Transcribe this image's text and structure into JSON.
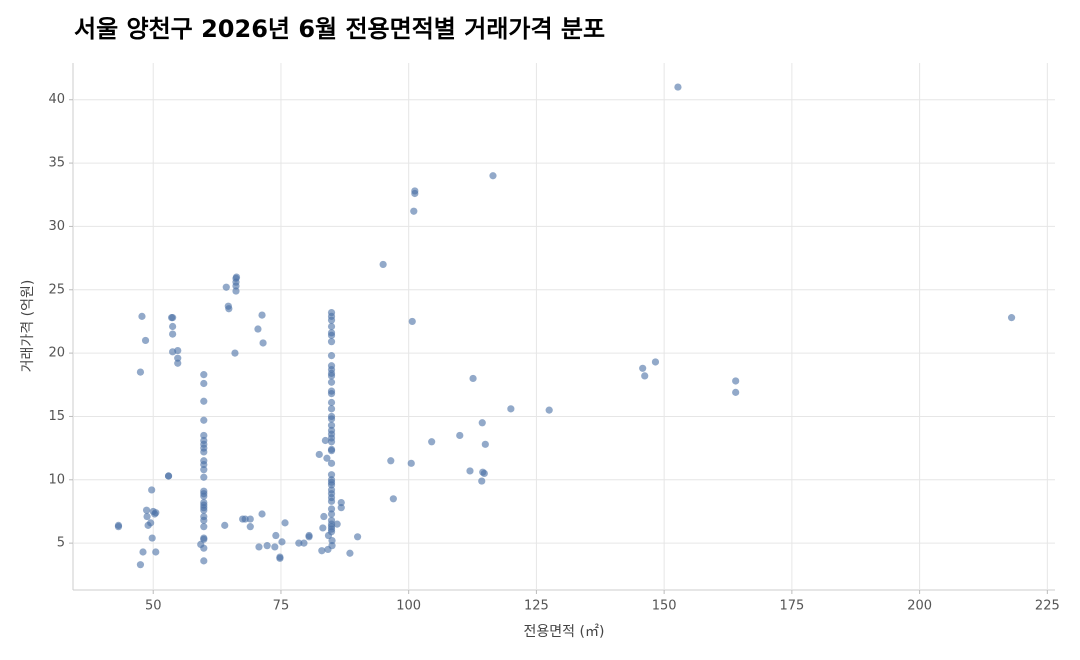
{
  "chart_data": {
    "type": "scatter",
    "title": "서울 양천구 2026년 6월 전용면적별 거래가격 분포",
    "x_label": "전용면적 (㎡)",
    "y_label": "거래가격 (억원)",
    "color": "#4a6fa5",
    "grid": true,
    "xlim": [
      34.3,
      226.5
    ],
    "ylim": [
      1.3,
      42.9
    ],
    "xticks": [
      50,
      75,
      100,
      125,
      150,
      175,
      200,
      225
    ],
    "yticks": [
      5,
      10,
      15,
      20,
      25,
      30,
      35,
      40
    ],
    "x": [
      43.2,
      43.2,
      47.5,
      47.5,
      47.8,
      48,
      48.5,
      48.7,
      48.8,
      49,
      49.5,
      49.7,
      49.8,
      50,
      50.3,
      50.5,
      50.5,
      53,
      53,
      53.6,
      53.8,
      53.8,
      53.8,
      53.8,
      54.8,
      54.8,
      54.8,
      59.9,
      59.9,
      59.9,
      59.9,
      59.9,
      59.9,
      59.9,
      59.9,
      59.9,
      59.9,
      59.9,
      59.9,
      59.9,
      59.9,
      59.9,
      59.9,
      59.9,
      59.9,
      59.9,
      59.9,
      59.9,
      59.9,
      59.9,
      59.9,
      59.9,
      59.9,
      59.9,
      59.3,
      64,
      64.3,
      64.7,
      64.8,
      66,
      66.2,
      66.3,
      66.2,
      66.2,
      66.2,
      67.5,
      68,
      69,
      69,
      70.5,
      70.7,
      71.3,
      71.5,
      71.3,
      72.3,
      73.8,
      74,
      74.8,
      74.8,
      75.2,
      75.8,
      78.5,
      79.5,
      80.5,
      80.5,
      82.5,
      83,
      83.2,
      83.4,
      83.7,
      84,
      84.2,
      84.3,
      85,
      85,
      86,
      86.8,
      86.8,
      88.5,
      90,
      84.9,
      84.9,
      84.9,
      84.9,
      84.9,
      84.9,
      84.9,
      84.9,
      84.9,
      84.9,
      84.9,
      84.9,
      84.9,
      84.9,
      84.9,
      84.9,
      84.9,
      84.9,
      84.9,
      84.9,
      84.9,
      84.9,
      84.9,
      84.9,
      84.9,
      84.9,
      84.9,
      84.9,
      84.9,
      84.9,
      84.9,
      84.9,
      84.9,
      84.9,
      84.9,
      84.9,
      84.9,
      84.9,
      84.9,
      84.9,
      84.9,
      84.9,
      95,
      96.5,
      97,
      100.5,
      100.7,
      101,
      101.2,
      101.2,
      104.5,
      110,
      112,
      112.6,
      114.3,
      114.4,
      114.5,
      114.8,
      115,
      116.5,
      120,
      127.5,
      145.8,
      146.2,
      148.3,
      152.7,
      164,
      164,
      218
    ],
    "values": [
      6.4,
      6.3,
      3.3,
      18.5,
      22.9,
      4.3,
      21,
      7.6,
      7.1,
      6.4,
      6.6,
      9.2,
      5.4,
      7.5,
      7.3,
      7.4,
      4.3,
      10.3,
      10.3,
      22.8,
      22.8,
      22.1,
      21.5,
      20.1,
      20.2,
      19.6,
      19.2,
      18.3,
      17.6,
      16.2,
      14.7,
      13.5,
      13.1,
      12.8,
      12.5,
      12.2,
      11.5,
      11.2,
      10.8,
      10.2,
      9.1,
      8.9,
      8.7,
      8.2,
      8.0,
      7.8,
      7.6,
      7.1,
      6.8,
      6.3,
      5.4,
      5.3,
      4.6,
      3.6,
      4.9,
      6.4,
      25.2,
      23.7,
      23.5,
      20,
      25.9,
      26.0,
      25.6,
      24.9,
      25.3,
      6.9,
      6.9,
      6.9,
      6.3,
      21.9,
      4.7,
      23,
      20.8,
      7.3,
      4.8,
      4.7,
      5.6,
      3.9,
      3.8,
      5.1,
      6.6,
      5,
      5,
      5.6,
      5.5,
      12,
      4.4,
      6.2,
      7.1,
      13.1,
      11.7,
      4.5,
      5.6,
      4.8,
      5.2,
      6.5,
      7.8,
      8.2,
      4.2,
      5.5,
      23.2,
      22.9,
      22.6,
      22.1,
      21.6,
      21.4,
      20.9,
      19.8,
      19.0,
      18.7,
      18.4,
      18.2,
      17.7,
      17,
      16.8,
      16.1,
      15.6,
      15,
      14.8,
      14.3,
      13.9,
      13.6,
      13.3,
      13.0,
      12.4,
      12.3,
      11.3,
      10.4,
      10,
      9.8,
      9.6,
      9.2,
      8.9,
      8.6,
      8.3,
      7.7,
      7.3,
      6.8,
      6.5,
      6.3,
      6.1,
      5.9,
      27,
      11.5,
      8.5,
      11.3,
      22.5,
      31.2,
      32.8,
      32.6,
      13,
      13.5,
      10.7,
      18,
      9.9,
      14.5,
      10.6,
      10.5,
      12.8,
      34,
      15.6,
      15.5,
      18.8,
      18.2,
      19.3,
      41,
      17.8,
      16.9,
      22.8
    ]
  }
}
